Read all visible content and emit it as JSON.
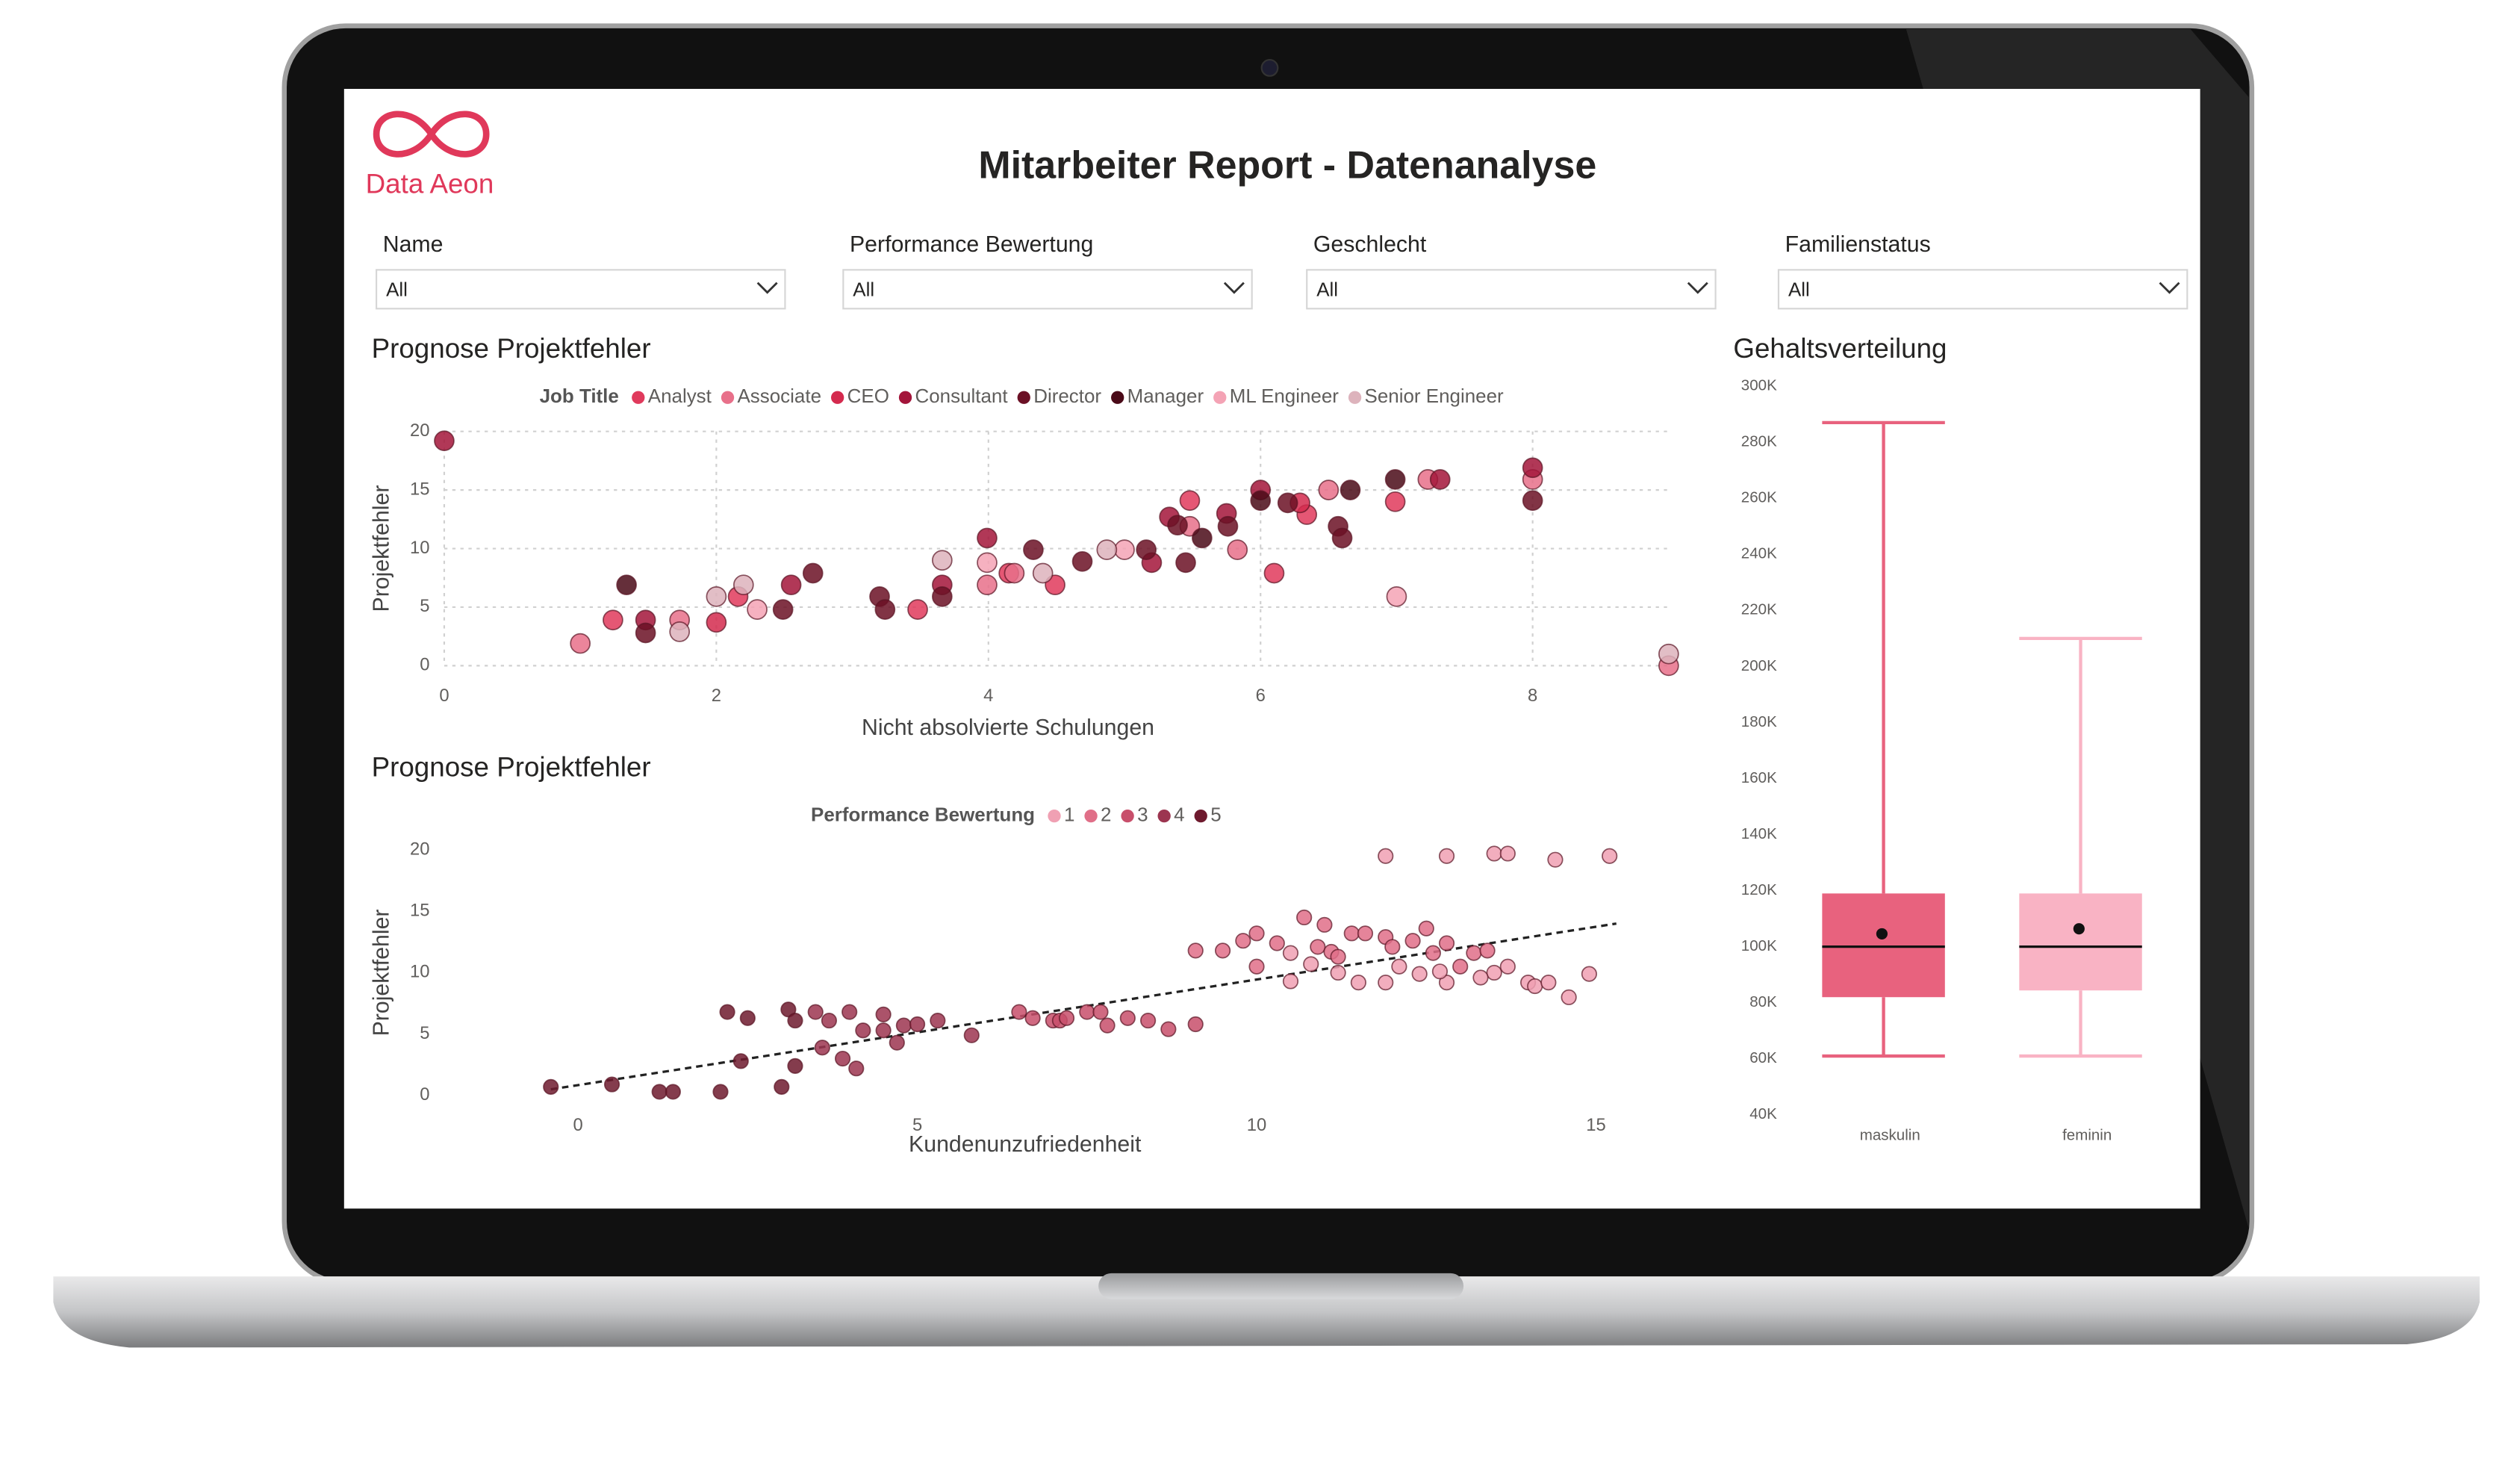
{
  "header": {
    "logo_text": "Data Aeon",
    "title": "Mitarbeiter Report - Datenanalyse"
  },
  "filters": [
    {
      "label": "Name",
      "value": "All"
    },
    {
      "label": "Performance Bewertung",
      "value": "All"
    },
    {
      "label": "Geschlecht",
      "value": "All"
    },
    {
      "label": "Familienstatus",
      "value": "All"
    }
  ],
  "chart_data": [
    {
      "type": "scatter",
      "title": "Prognose Projektfehler",
      "legend_title": "Job Title",
      "xlabel": "Nicht absolvierte Schulungen",
      "ylabel": "Projektfehler",
      "xlim": [
        0,
        9
      ],
      "ylim": [
        0,
        20
      ],
      "xticks": [
        0,
        2,
        4,
        6,
        8
      ],
      "yticks": [
        0,
        5,
        10,
        15,
        20
      ],
      "grid": true,
      "series": [
        {
          "name": "Analyst",
          "color": "#e03a5c",
          "x": [
            1.24,
            2.16,
            3.48,
            4.15,
            4.49,
            5.48,
            6.1,
            6.34,
            6.99
          ],
          "values": [
            3.9,
            5.9,
            4.8,
            7.9,
            6.9,
            14.1,
            7.9,
            12.9,
            14.0
          ]
        },
        {
          "name": "Associate",
          "color": "#e8708a",
          "x": [
            1.0,
            1.73,
            3.99,
            4.19,
            5.48,
            5.83,
            6.5,
            7.23,
            8.0,
            9.0
          ],
          "values": [
            1.9,
            3.9,
            6.9,
            7.9,
            11.9,
            9.9,
            15.0,
            15.9,
            15.9,
            0
          ]
        },
        {
          "name": "CEO",
          "color": "#d42a4e",
          "x": [
            2.0,
            6.29
          ],
          "values": [
            3.7,
            13.9
          ]
        },
        {
          "name": "Consultant",
          "color": "#a3153a",
          "x": [
            0,
            1.48,
            2.55,
            3.66,
            3.99,
            5.2,
            5.33,
            5.75,
            6.0,
            7.32,
            8.0
          ],
          "values": [
            19.2,
            3.9,
            6.9,
            6.9,
            10.9,
            8.8,
            12.7,
            13.0,
            15.0,
            15.9,
            16.9
          ]
        },
        {
          "name": "Director",
          "color": "#6b1025",
          "x": [
            1.48,
            2.49,
            2.71,
            3.2,
            3.24,
            3.66,
            4.33,
            4.69,
            5.16,
            5.39,
            5.45,
            5.76,
            6.2,
            6.57,
            6.6,
            8.0
          ],
          "values": [
            2.8,
            4.8,
            7.9,
            5.9,
            4.8,
            5.9,
            9.9,
            8.9,
            9.9,
            12.0,
            8.8,
            11.9,
            13.9,
            11.9,
            10.9,
            14.1
          ]
        },
        {
          "name": "Manager",
          "color": "#4a0a18",
          "x": [
            1.34,
            5.57,
            6.0,
            6.66,
            6.99
          ],
          "values": [
            6.9,
            10.9,
            14.1,
            15.0,
            15.9
          ]
        },
        {
          "name": "ML Engineer",
          "color": "#f4a3b5",
          "x": [
            2.3,
            3.99,
            5.0,
            7.0
          ],
          "values": [
            4.8,
            8.8,
            9.9,
            5.9
          ]
        },
        {
          "name": "Senior Engineer",
          "color": "#ddb3bc",
          "x": [
            1.73,
            2.0,
            2.2,
            3.66,
            4.4,
            4.87,
            9.0
          ],
          "values": [
            2.9,
            5.9,
            6.9,
            9.0,
            7.9,
            9.9,
            1.0
          ]
        }
      ]
    },
    {
      "type": "scatter",
      "title": "Prognose Projektfehler",
      "legend_title": "Performance Bewertung",
      "xlabel": "Kundenunzufriedenheit",
      "ylabel": "Projektfehler",
      "xlim": [
        -0.9,
        15.5
      ],
      "ylim": [
        0,
        20
      ],
      "xticks": [
        0,
        5,
        10,
        15
      ],
      "yticks": [
        0,
        5,
        10,
        15,
        20
      ],
      "grid": false,
      "series": [
        {
          "name": "1",
          "color": "#f0a0b3",
          "x": [
            13.5,
            13.7,
            14.0,
            14.1,
            14.3,
            14.6,
            14.9,
            10.5,
            10.8,
            11.5,
            11.9,
            12.4,
            12.8,
            11.9,
            12.8,
            13.5,
            13.7,
            14.4,
            15.2,
            10.5,
            11.2,
            12.1,
            12.7,
            13.3
          ],
          "values": [
            10.0,
            10.5,
            9.2,
            8.9,
            9.2,
            8.0,
            9.9,
            9.3,
            10.7,
            9.2,
            9.2,
            9.9,
            9.2,
            19.5,
            19.5,
            19.7,
            19.7,
            19.2,
            19.5,
            11.6,
            10.0,
            10.5,
            10.1,
            9.6
          ]
        },
        {
          "name": "2",
          "color": "#e06f88",
          "x": [
            9.1,
            9.5,
            9.8,
            10.0,
            10.3,
            10.7,
            10.9,
            11.0,
            11.1,
            11.2,
            11.4,
            11.6,
            11.9,
            12.0,
            12.3,
            12.5,
            12.6,
            12.8,
            13.0,
            13.2,
            13.4,
            10.0
          ],
          "values": [
            11.8,
            11.8,
            12.6,
            13.2,
            12.4,
            14.5,
            12.1,
            13.9,
            11.7,
            11.3,
            13.2,
            13.2,
            12.9,
            12.1,
            12.6,
            13.6,
            11.6,
            12.4,
            10.5,
            11.6,
            11.8,
            10.5
          ]
        },
        {
          "name": "3",
          "color": "#c84f6b",
          "x": [
            6.5,
            6.7,
            7.0,
            7.1,
            7.2,
            7.5,
            7.7,
            7.8,
            8.1,
            8.4,
            8.7,
            9.1
          ],
          "values": [
            6.8,
            6.3,
            6.1,
            6.1,
            6.3,
            6.8,
            6.8,
            5.7,
            6.3,
            6.1,
            5.4,
            5.8
          ]
        },
        {
          "name": "4",
          "color": "#9c3550",
          "x": [
            3.5,
            3.6,
            3.7,
            3.9,
            4.0,
            4.1,
            4.2,
            4.5,
            4.5,
            4.7,
            4.8,
            5.0,
            5.3,
            5.8
          ],
          "values": [
            6.8,
            3.9,
            6.1,
            3.0,
            6.8,
            2.2,
            5.3,
            5.3,
            6.6,
            4.3,
            5.7,
            5.8,
            6.1,
            4.9
          ]
        },
        {
          "name": "5",
          "color": "#6e1a2e",
          "x": [
            -0.4,
            0.5,
            1.2,
            1.4,
            2.1,
            2.2,
            2.5,
            2.4,
            3.0,
            3.1,
            3.2,
            3.2
          ],
          "values": [
            0.7,
            0.9,
            0.3,
            0.3,
            0.3,
            6.8,
            6.3,
            2.8,
            0.7,
            7.0,
            6.1,
            2.4
          ]
        }
      ],
      "trendline": {
        "x": [
          -0.4,
          15.3
        ],
        "values": [
          0.5,
          14
        ]
      }
    },
    {
      "type": "box",
      "title": "Gehaltsverteilung",
      "categories": [
        "maskulin",
        "feminin"
      ],
      "colors": [
        "#e8627e",
        "#f9b3c4"
      ],
      "ylim": [
        40000,
        300000
      ],
      "yticks": [
        {
          "value": 40000,
          "label": "40K"
        },
        {
          "value": 60000,
          "label": "60K"
        },
        {
          "value": 80000,
          "label": "80K"
        },
        {
          "value": 100000,
          "label": "100K"
        },
        {
          "value": 120000,
          "label": "120K"
        },
        {
          "value": 140000,
          "label": "140K"
        },
        {
          "value": 160000,
          "label": "160K"
        },
        {
          "value": 180000,
          "label": "180K"
        },
        {
          "value": 200000,
          "label": "200K"
        },
        {
          "value": 220000,
          "label": "220K"
        },
        {
          "value": 240000,
          "label": "240K"
        },
        {
          "value": 260000,
          "label": "260K"
        },
        {
          "value": 280000,
          "label": "280K"
        },
        {
          "value": 300000,
          "label": "300K"
        }
      ],
      "boxes": [
        {
          "min": 61000,
          "q1": 82000,
          "median": 100000,
          "q3": 119000,
          "max": 287000,
          "mean": 104600
        },
        {
          "min": 61000,
          "q1": 84400,
          "median": 100000,
          "q3": 119000,
          "max": 210000,
          "mean": 106400
        }
      ]
    }
  ]
}
